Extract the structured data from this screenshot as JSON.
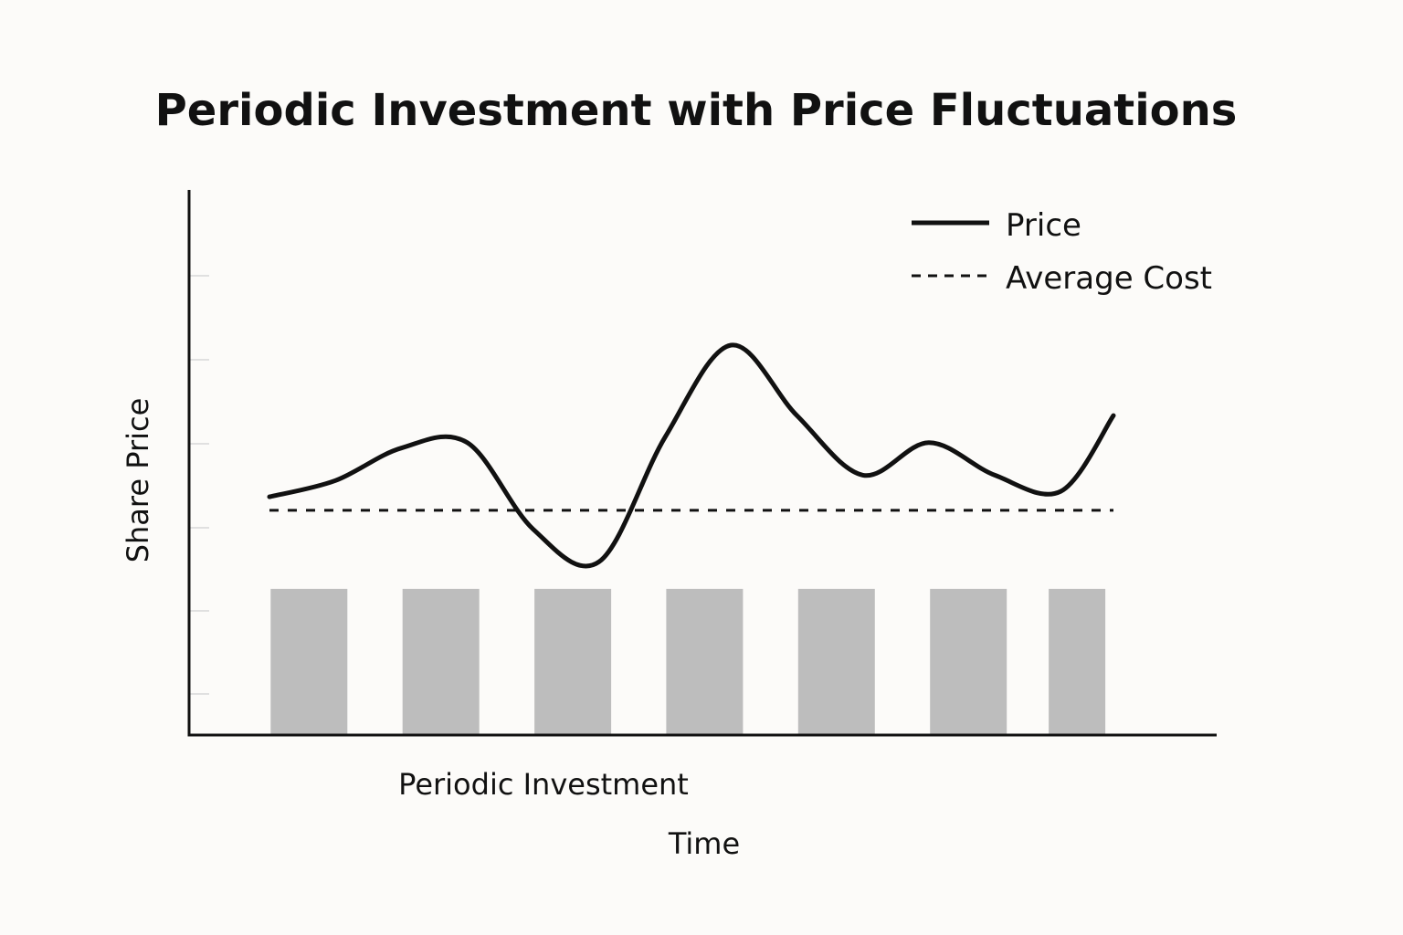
{
  "chart_data": {
    "type": "line",
    "title": "Periodic Investment with Price Fluctuations",
    "xlabel": "Time",
    "ylabel": "Share Price",
    "bar_label": "Periodic Investment",
    "grid": false,
    "legend_position": "top-right",
    "ylim": [
      0,
      1
    ],
    "xlim": [
      0,
      7
    ],
    "legend": {
      "price_label": "Price",
      "average_label": "Average Cost"
    },
    "series": [
      {
        "name": "Price",
        "style": "solid",
        "color": "#111111",
        "x": [
          0.0,
          0.5,
          1.0,
          1.5,
          2.0,
          2.5,
          3.0,
          3.5,
          4.0,
          4.5,
          5.0,
          5.5,
          6.0,
          6.4
        ],
        "y": [
          0.44,
          0.47,
          0.53,
          0.54,
          0.38,
          0.32,
          0.55,
          0.72,
          0.59,
          0.48,
          0.54,
          0.48,
          0.45,
          0.59
        ]
      },
      {
        "name": "Average Cost",
        "style": "dashed",
        "color": "#111111",
        "x": [
          0.0,
          6.4
        ],
        "y": [
          0.415,
          0.415
        ]
      }
    ],
    "bars": {
      "color": "#bdbdbd",
      "x": [
        0.3,
        1.3,
        2.3,
        3.3,
        4.3,
        5.3,
        6.2
      ],
      "values": [
        0.27,
        0.27,
        0.27,
        0.27,
        0.27,
        0.27,
        0.27
      ]
    }
  }
}
